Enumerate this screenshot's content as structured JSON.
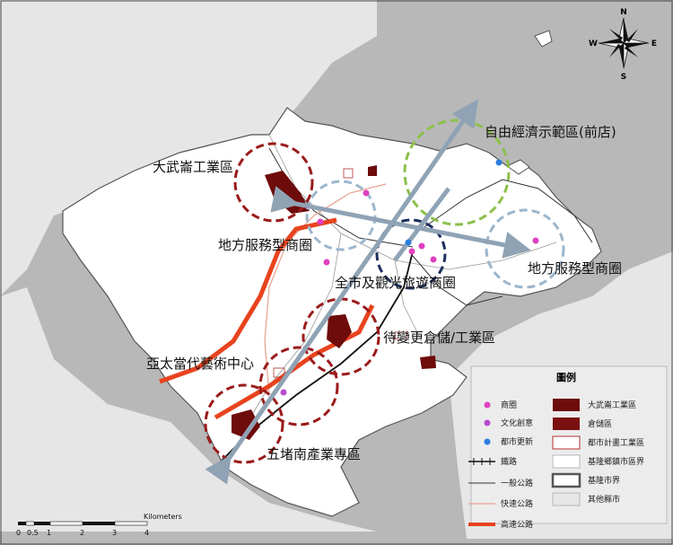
{
  "compass": {
    "n": "N",
    "s": "S",
    "e": "E",
    "w": "W"
  },
  "labels": {
    "dawulun": "大武崙工業區",
    "ftz": "自由經濟示範區(前店)",
    "service_west": "地方服務型商圈",
    "service_east": "地方服務型商圈",
    "tourism": "全市及觀光旅遊商圈",
    "industrial": "待變更倉儲/工業區",
    "art_center": "亞太當代藝術中心",
    "wudu": "五堵南產業專區"
  },
  "legend": {
    "title": "圖例",
    "left": [
      {
        "label": "商圈",
        "icon": "magenta-dot"
      },
      {
        "label": "文化創意",
        "icon": "purple-dot"
      },
      {
        "label": "都市更新",
        "icon": "blue-dot"
      },
      {
        "label": "鐵路",
        "icon": "railway-line"
      },
      {
        "label": "一般公路",
        "icon": "road-line"
      },
      {
        "label": "快速公路",
        "icon": "expressway-line"
      },
      {
        "label": "高速公路",
        "icon": "freeway-line"
      }
    ],
    "right": [
      {
        "label": "大武崙工業區",
        "icon": "darkred-box"
      },
      {
        "label": "倉儲區",
        "icon": "maroon-box"
      },
      {
        "label": "都市計畫工業區",
        "icon": "outline-red-box"
      },
      {
        "label": "基隆鄉鎮市區界",
        "icon": "white-box"
      },
      {
        "label": "基隆市界",
        "icon": "grey-border-box"
      },
      {
        "label": "其他縣市",
        "icon": "light-grey-box"
      }
    ]
  },
  "scale": {
    "unit": "Kilometers",
    "ticks": [
      "0",
      "0.5",
      "1",
      "2",
      "3",
      "4"
    ]
  },
  "colors": {
    "sea": "#b8b8b8",
    "land": "#ffffff",
    "other_county": "#e6e6e6",
    "dark_circle": "#1c2f5c",
    "red_circle": "#9b1b1b",
    "green_circle": "#8cc04a",
    "light_circle": "#9cb6cc",
    "freeway": "#e8431e",
    "arrow": "#8fa3b5"
  }
}
